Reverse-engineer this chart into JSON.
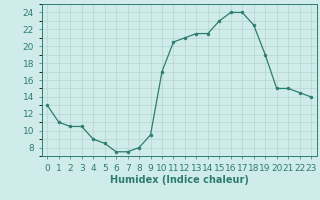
{
  "x": [
    0,
    1,
    2,
    3,
    4,
    5,
    6,
    7,
    8,
    9,
    10,
    11,
    12,
    13,
    14,
    15,
    16,
    17,
    18,
    19,
    20,
    21,
    22,
    23
  ],
  "y": [
    13,
    11,
    10.5,
    10.5,
    9,
    8.5,
    7.5,
    7.5,
    8,
    9.5,
    17,
    20.5,
    21,
    21.5,
    21.5,
    23,
    24,
    24,
    22.5,
    19,
    15,
    15,
    14.5,
    14
  ],
  "line_color": "#2d7d6e",
  "marker_color": "#2d7d6e",
  "bg_color": "#d0ecea",
  "grid_color": "#b8d4d0",
  "xlabel": "Humidex (Indice chaleur)",
  "yticks": [
    8,
    10,
    12,
    14,
    16,
    18,
    20,
    22,
    24
  ],
  "xlim": [
    -0.5,
    23.5
  ],
  "ylim": [
    7,
    25
  ],
  "xlabel_fontsize": 7,
  "tick_fontsize": 6.5
}
